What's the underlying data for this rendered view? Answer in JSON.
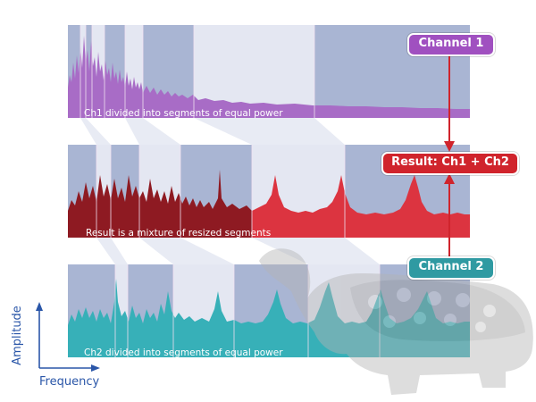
{
  "labels": {
    "channel1": "Channel 1",
    "channel2": "Channel 2",
    "result": "Result: Ch1 + Ch2"
  },
  "captions": {
    "ch1": "Ch1 divided into segments of equal power",
    "result": "Result is a mixture of resized segments",
    "ch2": "Ch2 divided into segments of equal power"
  },
  "axes": {
    "x": "Frequency",
    "y": "Amplitude"
  },
  "colors": {
    "channel1": "#a050c0",
    "channel2": "#2aa8b0",
    "result": "#d0242c",
    "result_dark": "#8c1018",
    "axis": "#2a56a8",
    "band": "#a8b4d2"
  }
}
